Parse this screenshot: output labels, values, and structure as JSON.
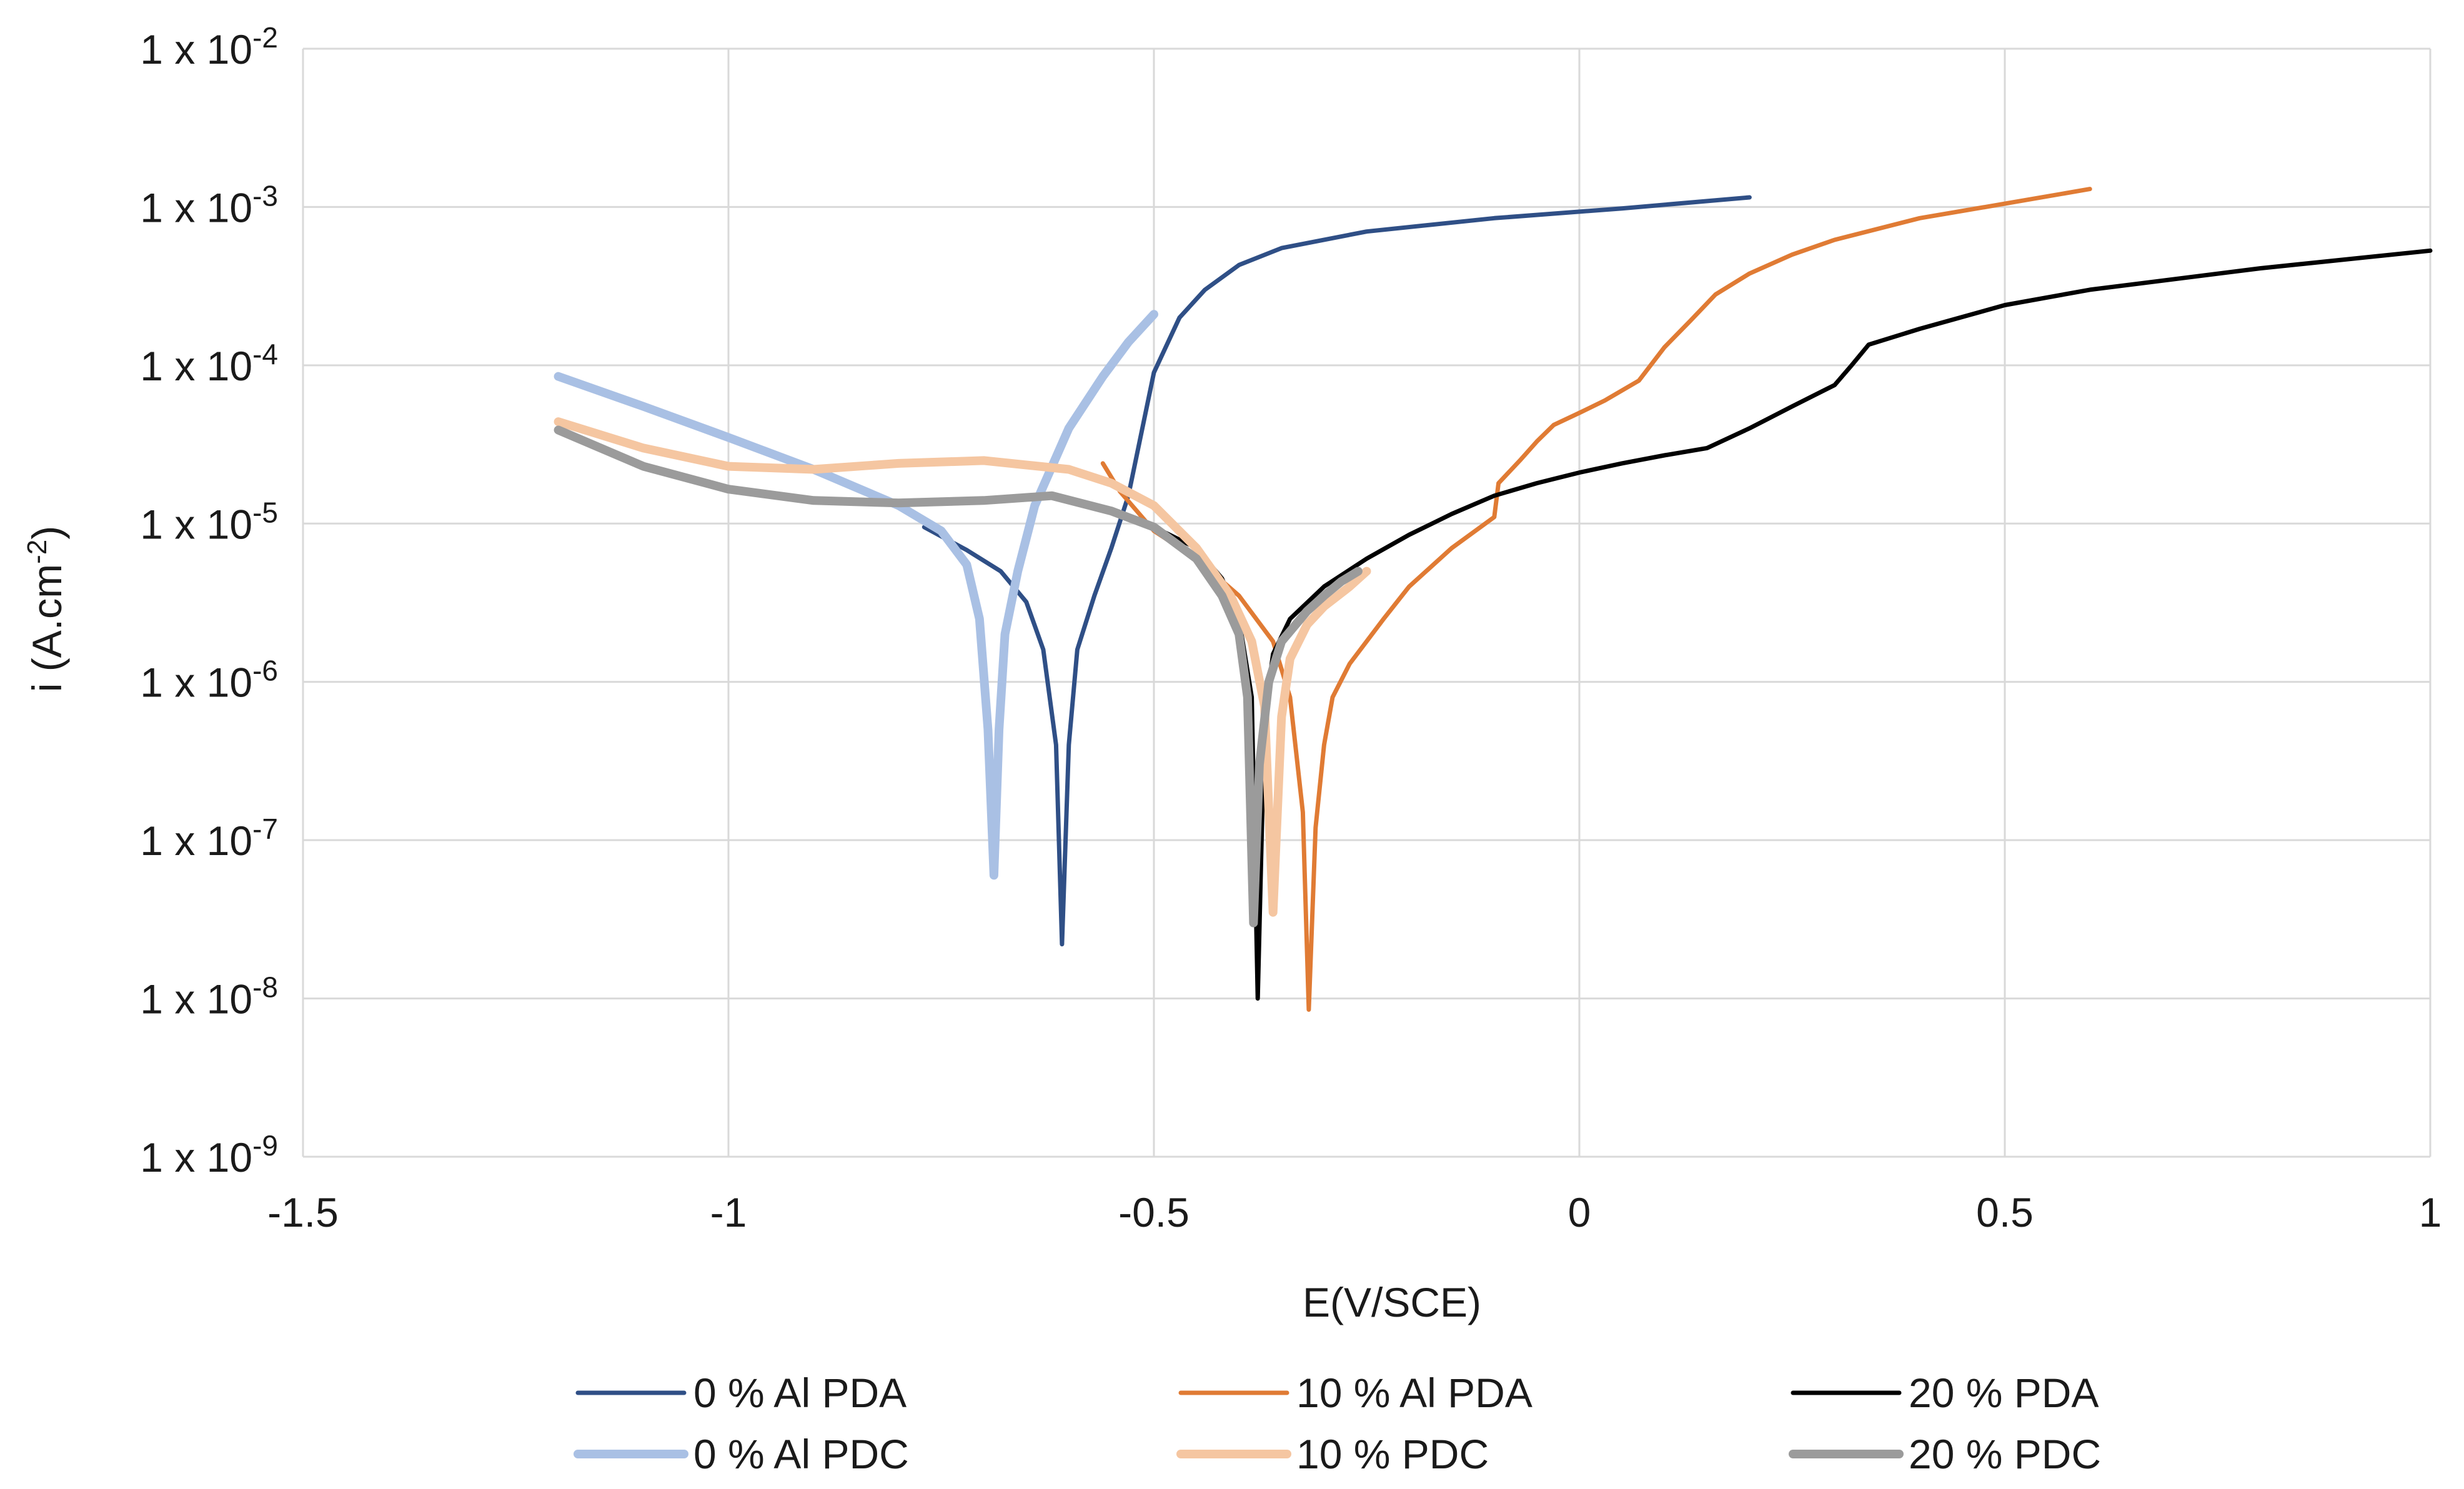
{
  "chart_data": {
    "type": "line",
    "title": "",
    "xlabel": "E(V/SCE)",
    "ylabel": "i (A.cm-2)",
    "ylabel_base": "i (A.cm",
    "ylabel_sup": "-2",
    "ylabel_tail": ")",
    "xscale": "linear",
    "yscale": "log",
    "xlim": [
      -1.5,
      1
    ],
    "ylim": [
      1e-09,
      0.01
    ],
    "grid": true,
    "legend_position": "bottom",
    "x_ticks": [
      {
        "value": -1.5,
        "label": "-1.5"
      },
      {
        "value": -1,
        "label": "-1"
      },
      {
        "value": -0.5,
        "label": "-0.5"
      },
      {
        "value": 0,
        "label": "0"
      },
      {
        "value": 0.5,
        "label": "0.5"
      },
      {
        "value": 1,
        "label": "1"
      }
    ],
    "y_ticks": [
      {
        "value": 0.01,
        "base": "1 x 10",
        "exp": "-2"
      },
      {
        "value": 0.001,
        "base": "1 x 10",
        "exp": "-3"
      },
      {
        "value": 0.0001,
        "base": "1 x 10",
        "exp": "-4"
      },
      {
        "value": 1e-05,
        "base": "1 x 10",
        "exp": "-5"
      },
      {
        "value": 1e-06,
        "base": "1 x 10",
        "exp": "-6"
      },
      {
        "value": 1e-07,
        "base": "1 x 10",
        "exp": "-7"
      },
      {
        "value": 1e-08,
        "base": "1 x 10",
        "exp": "-8"
      },
      {
        "value": 1e-09,
        "base": "1 x 10",
        "exp": "-9"
      }
    ],
    "series": [
      {
        "name": "0 % Al PDA",
        "color": "#2f4f86",
        "points": [
          [
            -0.77,
            9.5e-06
          ],
          [
            -0.72,
            6.8e-06
          ],
          [
            -0.68,
            5e-06
          ],
          [
            -0.65,
            3.2e-06
          ],
          [
            -0.63,
            1.6e-06
          ],
          [
            -0.615,
            4e-07
          ],
          [
            -0.608,
            2.2e-08
          ],
          [
            -0.6,
            4e-07
          ],
          [
            -0.59,
            1.6e-06
          ],
          [
            -0.57,
            3.5e-06
          ],
          [
            -0.55,
            7e-06
          ],
          [
            -0.53,
            1.5e-05
          ],
          [
            -0.5,
            9e-05
          ],
          [
            -0.47,
            0.0002
          ],
          [
            -0.44,
            0.0003
          ],
          [
            -0.4,
            0.00043
          ],
          [
            -0.35,
            0.00055
          ],
          [
            -0.25,
            0.0007
          ],
          [
            -0.1,
            0.00085
          ],
          [
            0.05,
            0.00098
          ],
          [
            0.2,
            0.00115
          ]
        ]
      },
      {
        "name": "10 % Al PDA",
        "color": "#e07b34",
        "points": [
          [
            -0.56,
            2.4e-05
          ],
          [
            -0.54,
            1.6e-05
          ],
          [
            -0.5,
            9e-06
          ],
          [
            -0.45,
            6e-06
          ],
          [
            -0.4,
            3.5e-06
          ],
          [
            -0.36,
            1.8e-06
          ],
          [
            -0.34,
            8e-07
          ],
          [
            -0.325,
            1.5e-07
          ],
          [
            -0.318,
            8.5e-09
          ],
          [
            -0.31,
            1.2e-07
          ],
          [
            -0.3,
            4e-07
          ],
          [
            -0.29,
            8e-07
          ],
          [
            -0.27,
            1.3e-06
          ],
          [
            -0.23,
            2.5e-06
          ],
          [
            -0.2,
            4e-06
          ],
          [
            -0.15,
            7e-06
          ],
          [
            -0.1,
            1.1e-05
          ],
          [
            -0.095,
            1.8e-05
          ],
          [
            -0.07,
            2.5e-05
          ],
          [
            -0.05,
            3.3e-05
          ],
          [
            -0.03,
            4.2e-05
          ],
          [
            0,
            5e-05
          ],
          [
            0.03,
            6e-05
          ],
          [
            0.07,
            8e-05
          ],
          [
            0.1,
            0.00013
          ],
          [
            0.13,
            0.00019
          ],
          [
            0.16,
            0.00028
          ],
          [
            0.2,
            0.00038
          ],
          [
            0.25,
            0.0005
          ],
          [
            0.3,
            0.00062
          ],
          [
            0.4,
            0.00085
          ],
          [
            0.5,
            0.00105
          ],
          [
            0.6,
            0.0013
          ]
        ]
      },
      {
        "name": "20 % PDA",
        "color": "#000000",
        "points": [
          [
            -0.5,
            9.5e-06
          ],
          [
            -0.45,
            7e-06
          ],
          [
            -0.42,
            4.5e-06
          ],
          [
            -0.4,
            2.5e-06
          ],
          [
            -0.385,
            8e-07
          ],
          [
            -0.378,
            1e-08
          ],
          [
            -0.37,
            6e-07
          ],
          [
            -0.36,
            1.5e-06
          ],
          [
            -0.34,
            2.5e-06
          ],
          [
            -0.3,
            4e-06
          ],
          [
            -0.25,
            6e-06
          ],
          [
            -0.2,
            8.5e-06
          ],
          [
            -0.15,
            1.15e-05
          ],
          [
            -0.1,
            1.5e-05
          ],
          [
            -0.05,
            1.8e-05
          ],
          [
            0,
            2.1e-05
          ],
          [
            0.05,
            2.4e-05
          ],
          [
            0.1,
            2.7e-05
          ],
          [
            0.15,
            3e-05
          ],
          [
            0.2,
            4e-05
          ],
          [
            0.25,
            5.5e-05
          ],
          [
            0.3,
            7.5e-05
          ],
          [
            0.32,
            0.0001
          ],
          [
            0.34,
            0.000135
          ],
          [
            0.4,
            0.00017
          ],
          [
            0.5,
            0.00024
          ],
          [
            0.6,
            0.0003
          ],
          [
            0.8,
            0.00041
          ],
          [
            1,
            0.00053
          ]
        ]
      },
      {
        "name": "0 % Al PDC",
        "color": "#a9c0e4",
        "points": [
          [
            -1.2,
            8.5e-05
          ],
          [
            -1.1,
            5.5e-05
          ],
          [
            -1,
            3.5e-05
          ],
          [
            -0.9,
            2.2e-05
          ],
          [
            -0.8,
            1.3e-05
          ],
          [
            -0.75,
            9e-06
          ],
          [
            -0.72,
            5.5e-06
          ],
          [
            -0.705,
            2.5e-06
          ],
          [
            -0.695,
            5e-07
          ],
          [
            -0.688,
            6e-08
          ],
          [
            -0.682,
            5e-07
          ],
          [
            -0.675,
            2e-06
          ],
          [
            -0.66,
            5e-06
          ],
          [
            -0.64,
            1.3e-05
          ],
          [
            -0.6,
            4e-05
          ],
          [
            -0.56,
            8.5e-05
          ],
          [
            -0.53,
            0.00014
          ],
          [
            -0.5,
            0.00021
          ]
        ]
      },
      {
        "name": "10 % PDC",
        "color": "#f5c6a1",
        "points": [
          [
            -1.2,
            4.4e-05
          ],
          [
            -1.1,
            3e-05
          ],
          [
            -1,
            2.3e-05
          ],
          [
            -0.9,
            2.2e-05
          ],
          [
            -0.8,
            2.4e-05
          ],
          [
            -0.7,
            2.5e-05
          ],
          [
            -0.6,
            2.2e-05
          ],
          [
            -0.55,
            1.8e-05
          ],
          [
            -0.5,
            1.3e-05
          ],
          [
            -0.45,
            7e-06
          ],
          [
            -0.41,
            3.5e-06
          ],
          [
            -0.385,
            1.8e-06
          ],
          [
            -0.37,
            7e-07
          ],
          [
            -0.36,
            3.5e-08
          ],
          [
            -0.35,
            6e-07
          ],
          [
            -0.34,
            1.4e-06
          ],
          [
            -0.32,
            2.3e-06
          ],
          [
            -0.3,
            3e-06
          ],
          [
            -0.27,
            4e-06
          ],
          [
            -0.25,
            5e-06
          ]
        ]
      },
      {
        "name": "20 % PDC",
        "color": "#9b9b9b",
        "points": [
          [
            -1.2,
            3.9e-05
          ],
          [
            -1.1,
            2.3e-05
          ],
          [
            -1,
            1.65e-05
          ],
          [
            -0.9,
            1.4e-05
          ],
          [
            -0.8,
            1.35e-05
          ],
          [
            -0.7,
            1.4e-05
          ],
          [
            -0.62,
            1.5e-05
          ],
          [
            -0.55,
            1.2e-05
          ],
          [
            -0.5,
            9.5e-06
          ],
          [
            -0.45,
            6e-06
          ],
          [
            -0.42,
            3.5e-06
          ],
          [
            -0.4,
            2e-06
          ],
          [
            -0.39,
            8e-07
          ],
          [
            -0.383,
            3e-08
          ],
          [
            -0.376,
            3e-07
          ],
          [
            -0.365,
            1e-06
          ],
          [
            -0.35,
            1.8e-06
          ],
          [
            -0.32,
            2.8e-06
          ],
          [
            -0.3,
            3.5e-06
          ],
          [
            -0.28,
            4.3e-06
          ],
          [
            -0.26,
            5e-06
          ]
        ]
      }
    ]
  }
}
